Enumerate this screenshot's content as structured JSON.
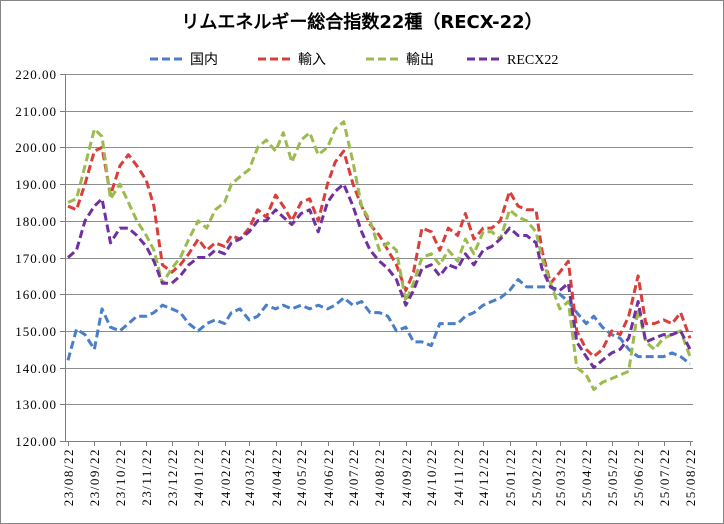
{
  "chart_data": {
    "type": "line",
    "title": "リムエネルギー総合指数22種（RECX-22）",
    "ylim": [
      120,
      220
    ],
    "yticks": [
      "120.00",
      "130.00",
      "140.00",
      "150.00",
      "160.00",
      "170.00",
      "180.00",
      "190.00",
      "200.00",
      "210.00",
      "220.00"
    ],
    "xticks": [
      "23/08/22",
      "23/09/22",
      "23/10/22",
      "23/11/22",
      "23/12/22",
      "24/01/22",
      "24/02/22",
      "24/03/22",
      "24/04/22",
      "24/05/22",
      "24/06/22",
      "24/07/22",
      "24/08/22",
      "24/09/22",
      "24/10/22",
      "24/11/22",
      "24/12/22",
      "25/01/22",
      "25/02/22",
      "25/03/22",
      "25/04/22",
      "25/05/22",
      "25/06/22",
      "25/07/22",
      "25/08/22"
    ],
    "x": [
      "23/08/22",
      "23/09/01",
      "23/09/11",
      "23/09/22",
      "23/10/01",
      "23/10/11",
      "23/10/22",
      "23/11/01",
      "23/11/11",
      "23/11/22",
      "23/12/01",
      "23/12/11",
      "23/12/22",
      "24/01/01",
      "24/01/11",
      "24/01/22",
      "24/02/01",
      "24/02/11",
      "24/02/22",
      "24/03/01",
      "24/03/11",
      "24/03/22",
      "24/04/01",
      "24/04/11",
      "24/04/22",
      "24/05/01",
      "24/05/11",
      "24/05/22",
      "24/06/01",
      "24/06/11",
      "24/06/22",
      "24/07/01",
      "24/07/11",
      "24/07/22",
      "24/08/01",
      "24/08/11",
      "24/08/22",
      "24/09/01",
      "24/09/11",
      "24/09/22",
      "24/10/01",
      "24/10/11",
      "24/10/22",
      "24/11/01",
      "24/11/11",
      "24/11/22",
      "24/12/01",
      "24/12/11",
      "24/12/22",
      "25/01/01",
      "25/01/11",
      "25/01/22",
      "25/02/01",
      "25/02/11",
      "25/02/22",
      "25/03/01",
      "25/03/11",
      "25/03/22",
      "25/04/01",
      "25/04/11",
      "25/04/22",
      "25/05/01",
      "25/05/11",
      "25/05/22",
      "25/06/01",
      "25/06/11",
      "25/06/22",
      "25/07/01",
      "25/07/11",
      "25/07/22",
      "25/08/01",
      "25/08/11",
      "25/08/22"
    ],
    "series": [
      {
        "name": "国内",
        "color": "#4A7EC9",
        "values": [
          142,
          150.5,
          149,
          145,
          156,
          151,
          150,
          152,
          154,
          154,
          155,
          157,
          156,
          155,
          152,
          150,
          152,
          153,
          152,
          155,
          156,
          153,
          154,
          157,
          156,
          157,
          156,
          157,
          156,
          157,
          156,
          157,
          159,
          157,
          158,
          155,
          155,
          154,
          150,
          151,
          147,
          147,
          146,
          152,
          152,
          152,
          154,
          155,
          157,
          158,
          159,
          161,
          164,
          162,
          162,
          162,
          162,
          160,
          158,
          155,
          152,
          154,
          151,
          149,
          148,
          145,
          143,
          143,
          143,
          143,
          144,
          143,
          141
        ]
      },
      {
        "name": "輸入",
        "color": "#D93E3A",
        "values": [
          184,
          183,
          190,
          199,
          200,
          187,
          195,
          198,
          195,
          191,
          184,
          168,
          166,
          168,
          171,
          175,
          172,
          174,
          173,
          176,
          175,
          178,
          183,
          181,
          187,
          184,
          180,
          185,
          186,
          180,
          190,
          196,
          199,
          190,
          184,
          179,
          176,
          172,
          168,
          161,
          166,
          178,
          177,
          172,
          178,
          176,
          182,
          175,
          178,
          178,
          180,
          188,
          184,
          183,
          183,
          172,
          163,
          166,
          169,
          150,
          145,
          143,
          145,
          150,
          149,
          154,
          165,
          152,
          152,
          153,
          152,
          155,
          148
        ]
      },
      {
        "name": "輸出",
        "color": "#9BBB4F",
        "values": [
          185,
          186,
          195,
          205,
          203,
          186,
          190,
          185,
          180,
          176,
          172,
          163,
          167,
          170,
          175,
          180,
          178,
          183,
          185,
          190,
          192,
          194,
          200,
          202,
          199,
          204,
          196,
          202,
          204,
          198,
          200,
          205,
          207,
          196,
          184,
          180,
          172,
          174,
          172,
          158,
          163,
          170,
          171,
          168,
          172,
          169,
          175,
          171,
          177,
          177,
          175,
          183,
          181,
          180,
          177,
          170,
          163,
          156,
          158,
          140,
          138,
          134,
          136,
          137,
          138,
          139,
          156,
          147,
          145,
          148,
          149,
          150,
          143
        ]
      },
      {
        "name": "RECX22",
        "color": "#7030A0",
        "values": [
          170,
          172,
          180,
          184,
          186,
          174,
          178,
          178,
          176,
          173,
          169,
          163,
          163,
          165,
          168,
          170,
          170,
          172,
          171,
          174,
          175,
          177,
          180,
          180,
          183,
          181,
          179,
          182,
          183,
          177,
          185,
          188,
          190,
          184,
          177,
          172,
          169,
          167,
          164,
          157,
          161,
          167,
          168,
          165,
          168,
          167,
          171,
          168,
          172,
          173,
          175,
          178,
          176,
          176,
          174,
          167,
          162,
          161,
          163,
          147,
          143,
          140,
          142,
          144,
          145,
          148,
          158,
          147,
          148,
          149,
          149,
          150,
          145
        ]
      }
    ],
    "line_style": "dashed",
    "grid": true,
    "legend": "top"
  }
}
